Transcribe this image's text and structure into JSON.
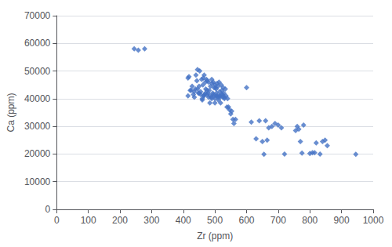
{
  "chart_data": {
    "type": "scatter",
    "xlabel": "Zr (ppm)",
    "ylabel": "Ca (ppm)",
    "x": [
      245,
      258,
      278,
      415,
      418,
      422,
      428,
      432,
      435,
      438,
      440,
      443,
      445,
      448,
      450,
      452,
      455,
      458,
      460,
      462,
      463,
      465,
      466,
      468,
      470,
      471,
      473,
      475,
      476,
      478,
      480,
      482,
      484,
      486,
      488,
      490,
      491,
      493,
      495,
      497,
      498,
      500,
      500,
      502,
      504,
      505,
      507,
      508,
      510,
      511,
      513,
      515,
      516,
      518,
      520,
      522,
      524,
      526,
      528,
      530,
      533,
      535,
      538,
      540,
      543,
      546,
      550,
      553,
      557,
      560,
      565,
      415,
      425,
      435,
      445,
      450,
      455,
      460,
      465,
      470,
      475,
      480,
      485,
      490,
      495,
      500,
      505,
      510,
      515,
      520,
      525,
      530,
      600,
      615,
      630,
      640,
      650,
      655,
      660,
      665,
      670,
      680,
      690,
      700,
      710,
      720,
      755,
      760,
      765,
      770,
      775,
      780,
      800,
      808,
      815,
      820,
      832,
      840,
      848,
      855,
      945
    ],
    "values": [
      58000,
      57500,
      58000,
      47500,
      48000,
      43000,
      44500,
      41500,
      40500,
      43500,
      48500,
      46500,
      50500,
      42000,
      44500,
      50000,
      42500,
      47000,
      39500,
      45000,
      47500,
      41000,
      48500,
      41500,
      46000,
      43500,
      47000,
      43000,
      46500,
      42000,
      46000,
      43000,
      38500,
      44500,
      40500,
      47000,
      45500,
      42000,
      46000,
      44000,
      41000,
      45000,
      38500,
      44000,
      43500,
      42000,
      45500,
      41000,
      44500,
      39500,
      46000,
      42500,
      40500,
      38500,
      45000,
      43000,
      41500,
      44000,
      42000,
      40500,
      43500,
      41000,
      37000,
      40000,
      37000,
      36000,
      34500,
      35500,
      32500,
      31000,
      32500,
      41000,
      43000,
      42500,
      43500,
      42000,
      41500,
      40000,
      41000,
      42000,
      41500,
      40500,
      41000,
      40000,
      41500,
      40000,
      41000,
      40500,
      41000,
      41500,
      40500,
      40000,
      44000,
      31500,
      25500,
      32000,
      24500,
      19900,
      32000,
      25000,
      29500,
      30000,
      31000,
      30500,
      29500,
      20000,
      28500,
      30000,
      29000,
      24500,
      20300,
      30500,
      20200,
      20500,
      20500,
      24000,
      20000,
      24500,
      25000,
      23000,
      19900
    ],
    "color": "#4472C4",
    "marker": "diamond",
    "xlim": [
      0,
      1000
    ],
    "ylim": [
      0,
      70000
    ],
    "xticks": [
      0,
      100,
      200,
      300,
      400,
      500,
      600,
      700,
      800,
      900,
      1000
    ],
    "yticks": [
      0,
      10000,
      20000,
      30000,
      40000,
      50000,
      60000,
      70000
    ],
    "grid": "y"
  }
}
